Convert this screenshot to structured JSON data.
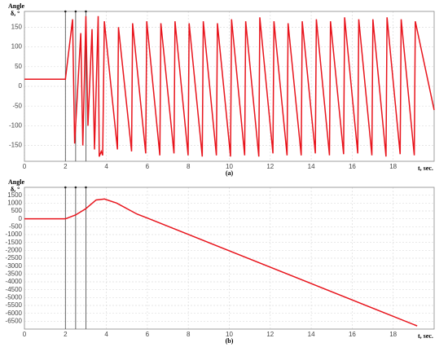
{
  "chart_data": [
    {
      "type": "line",
      "ylabel": "Angle",
      "yunit": "δ, °",
      "xlabel": "t, sec.",
      "caption": "(a)",
      "x": [
        0,
        2,
        2.35,
        2.45,
        2.75,
        2.85,
        3.0,
        3.1,
        3.3,
        3.42,
        3.6,
        3.65,
        3.75,
        3.82,
        3.9,
        4.54,
        4.59,
        5.23,
        5.28,
        5.92,
        5.97,
        6.61,
        6.66,
        7.3,
        7.35,
        7.99,
        8.04,
        8.68,
        8.73,
        9.37,
        9.42,
        10.06,
        10.11,
        10.75,
        10.8,
        11.44,
        11.49,
        12.13,
        12.18,
        12.82,
        12.87,
        13.51,
        13.56,
        14.2,
        14.25,
        14.89,
        14.94,
        15.58,
        15.63,
        16.27,
        16.32,
        16.96,
        17.01,
        17.65,
        17.7,
        18.34,
        18.39,
        19.03,
        19.08,
        20
      ],
      "series": [
        {
          "color": "#e8141c",
          "values": [
            18,
            18,
            170,
            -145,
            135,
            -150,
            178,
            -100,
            145,
            -160,
            178,
            -178,
            -165,
            -175,
            165,
            -160,
            150,
            -165,
            160,
            -170,
            165,
            -175,
            160,
            -170,
            165,
            -175,
            160,
            -178,
            165,
            -175,
            160,
            -178,
            170,
            -175,
            165,
            -178,
            175,
            -170,
            165,
            -175,
            160,
            -175,
            165,
            -170,
            170,
            -175,
            165,
            -172,
            175,
            -170,
            170,
            -175,
            170,
            -178,
            175,
            -172,
            170,
            -175,
            165,
            -60
          ]
        }
      ],
      "vlines": [
        2,
        2.5,
        3
      ],
      "xlim": [
        0,
        20
      ],
      "xticks": [
        0,
        2,
        4,
        6,
        8,
        10,
        12,
        14,
        16,
        18
      ],
      "ylim": [
        -190,
        190
      ],
      "yticks": [
        -150,
        -100,
        -50,
        0,
        50,
        100,
        150
      ],
      "grid": true
    },
    {
      "type": "line",
      "ylabel": "Angle",
      "yunit": "δ, °",
      "xlabel": "t, sec.",
      "caption": "(b)",
      "x": [
        0,
        2,
        2.5,
        3,
        3.5,
        3.9,
        4.5,
        5,
        5.5,
        6,
        19.17
      ],
      "series": [
        {
          "color": "#e8141c",
          "values": [
            0,
            0,
            250,
            650,
            1200,
            1260,
            1000,
            650,
            300,
            50,
            -6800
          ]
        }
      ],
      "vlines": [
        2,
        2.5,
        3
      ],
      "xlim": [
        0,
        20
      ],
      "xticks": [
        0,
        2,
        4,
        6,
        8,
        10,
        12,
        14,
        16,
        18
      ],
      "ylim": [
        -7000,
        2000
      ],
      "yticks": [
        -6500,
        -6000,
        -5500,
        -5000,
        -4500,
        -4000,
        -3500,
        -3000,
        -2500,
        -2000,
        -1500,
        -1000,
        -500,
        0,
        500,
        1000,
        1500
      ],
      "grid": true
    }
  ]
}
